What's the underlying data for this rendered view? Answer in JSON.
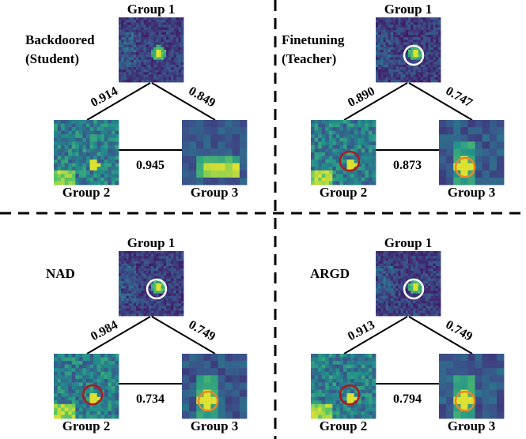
{
  "colors": {
    "background": "#ffffff",
    "lines": "#000000",
    "heatmap_low": "#440154",
    "heatmap_high": "#fde725",
    "circle_white": "#ffffff",
    "circle_red": "#b0191e",
    "circle_orange": "#e8872a"
  },
  "panels": [
    {
      "title_lines": [
        "Backdoored",
        "(Student)"
      ],
      "group1_label": "Group 1",
      "group2_label": "Group 2",
      "group3_label": "Group 3",
      "weight_g1_g2": "0.914",
      "weight_g1_g3": "0.849",
      "weight_g2_g3": "0.945",
      "highlight_circles": false
    },
    {
      "title_lines": [
        "Finetuning",
        "(Teacher)"
      ],
      "group1_label": "Group 1",
      "group2_label": "Group 2",
      "group3_label": "Group 3",
      "weight_g1_g2": "0.890",
      "weight_g1_g3": "0.747",
      "weight_g2_g3": "0.873",
      "highlight_circles": true
    },
    {
      "title_lines": [
        "NAD"
      ],
      "group1_label": "Group 1",
      "group2_label": "Group 2",
      "group3_label": "Group 3",
      "weight_g1_g2": "0.984",
      "weight_g1_g3": "0.749",
      "weight_g2_g3": "0.734",
      "highlight_circles": true
    },
    {
      "title_lines": [
        "ARGD"
      ],
      "group1_label": "Group 1",
      "group2_label": "Group 2",
      "group3_label": "Group 3",
      "weight_g1_g2": "0.913",
      "weight_g1_g3": "0.749",
      "weight_g2_g3": "0.794",
      "highlight_circles": true
    }
  ]
}
